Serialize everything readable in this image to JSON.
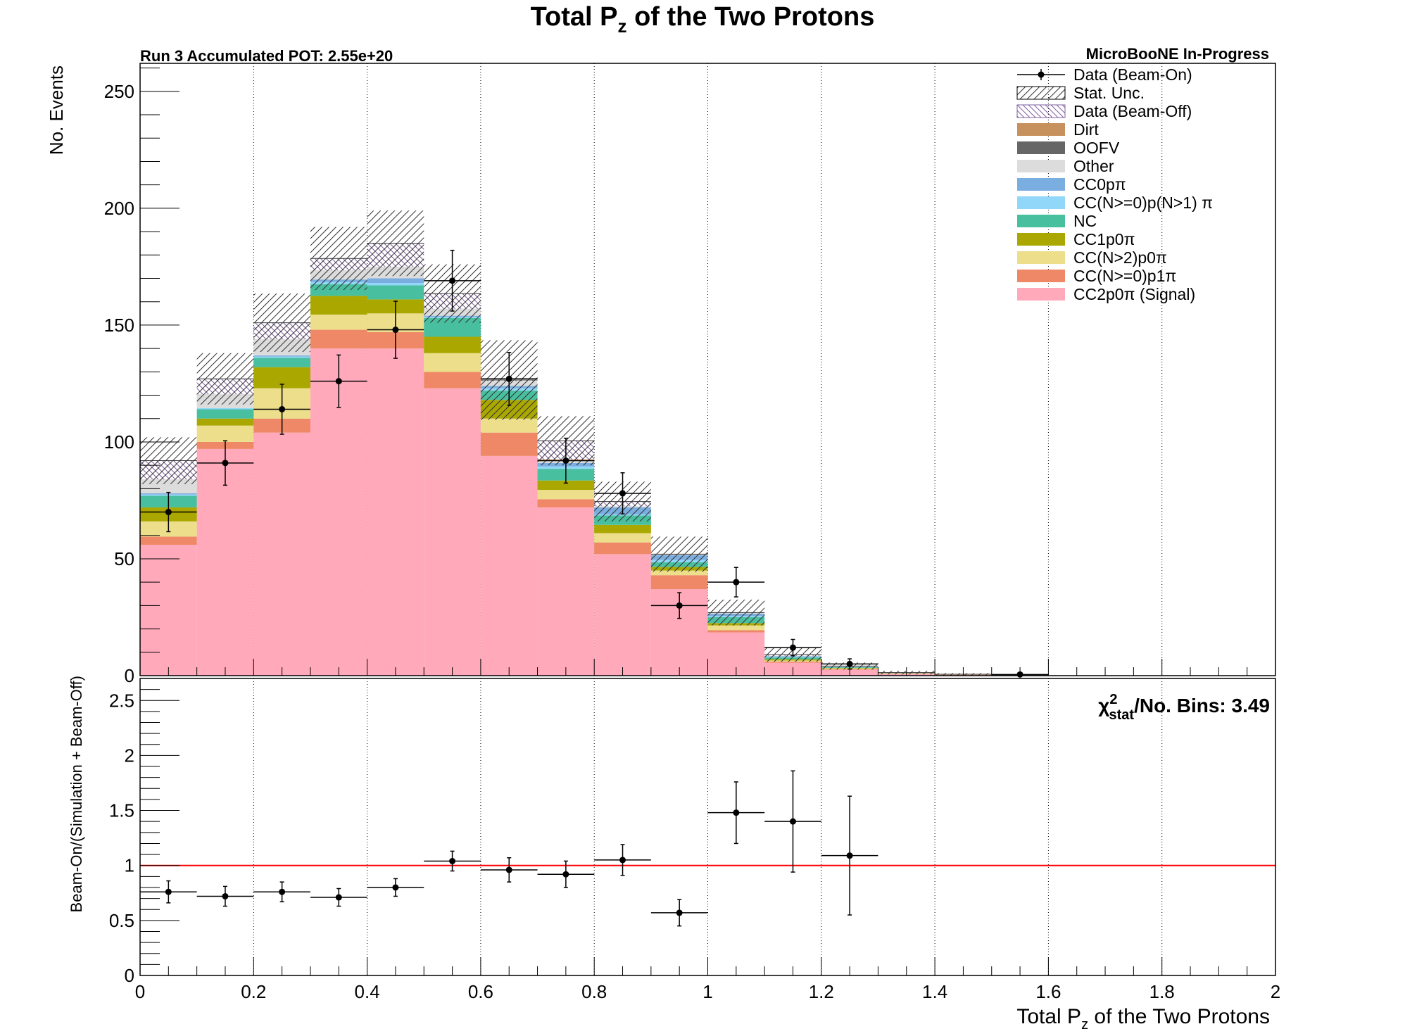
{
  "chart_data": [
    {
      "type": "bar",
      "stacked": true,
      "title": "Total P",
      "title_sub": "z",
      "title_rest": " of the Two Protons",
      "run_label": "Run 3 Accumulated POT: 2.55e+20",
      "experiment_label": "MicroBooNE In-Progress",
      "ylabel": "No. Events",
      "xlim": [
        0,
        2
      ],
      "ylim": [
        0,
        262
      ],
      "y_ticks": [
        0,
        50,
        100,
        150,
        200,
        250
      ],
      "y_tick_labels": [
        "0",
        "50",
        "100",
        "150",
        "200",
        "250"
      ],
      "grid_x": true,
      "bin_edges": [
        0,
        0.1,
        0.2,
        0.3,
        0.4,
        0.5,
        0.6,
        0.7,
        0.8,
        0.9,
        1.0,
        1.1,
        1.2,
        1.3,
        1.4,
        1.5,
        1.6
      ],
      "series": [
        {
          "name": "CC2p0π (Signal)",
          "color": "#ffa9bb",
          "values": [
            56,
            97,
            104,
            140,
            140,
            123,
            94,
            72,
            52,
            37,
            18.5,
            5.5,
            2.5,
            0.8,
            0.3,
            0.2
          ]
        },
        {
          "name": "CC(N>=0)p1π",
          "color": "#ef8866",
          "values": [
            3.5,
            3,
            6,
            8,
            7,
            7,
            10,
            3.5,
            5,
            6,
            1,
            0.5,
            0.3,
            0.1,
            0.1,
            0
          ]
        },
        {
          "name": "CC(N>2)p0π",
          "color": "#ecde8a",
          "values": [
            6.5,
            7,
            13,
            6.5,
            8,
            8,
            6,
            4,
            4,
            2,
            2,
            0.5,
            0.3,
            0.1,
            0.1,
            0
          ]
        },
        {
          "name": "CC1p0π",
          "color": "#aaa700",
          "values": [
            6,
            3,
            9,
            8,
            6,
            7,
            8,
            4,
            3.5,
            1.5,
            1,
            0.5,
            0.2,
            0.1,
            0,
            0
          ]
        },
        {
          "name": "NC",
          "color": "#48bf9e",
          "values": [
            5,
            4,
            4,
            5,
            6,
            8,
            4,
            5,
            4,
            2,
            2.5,
            0.8,
            0.3,
            0.1,
            0.1,
            0
          ]
        },
        {
          "name": "CC(N>=0)p(N>1) π",
          "color": "#90d7f9",
          "values": [
            0.5,
            0.5,
            0.5,
            1,
            1,
            0.5,
            1,
            1,
            0.5,
            1,
            0.5,
            0.2,
            0.1,
            0,
            0,
            0
          ]
        },
        {
          "name": "CC0pπ",
          "color": "#7aaee0",
          "values": [
            0.5,
            0,
            0.5,
            1,
            2,
            0.5,
            1,
            1.5,
            3,
            2,
            1,
            0.3,
            0.1,
            0.1,
            0,
            0
          ]
        },
        {
          "name": "Other",
          "color": "#dcdcdc",
          "values": [
            6,
            6,
            7,
            4,
            5,
            3,
            2,
            1,
            0.5,
            0.5,
            0.5,
            0.2,
            0.1,
            0,
            0,
            0
          ]
        },
        {
          "name": "OOFV",
          "color": "#666666",
          "values": [
            0,
            0,
            0,
            0,
            0,
            0,
            0,
            0,
            0,
            0,
            0,
            0,
            0,
            0,
            0,
            0
          ]
        },
        {
          "name": "Dirt",
          "color": "#c7915e",
          "values": [
            0,
            0,
            0,
            0,
            0,
            0,
            0,
            0.5,
            0,
            0,
            0,
            0,
            0,
            0,
            0,
            0
          ]
        },
        {
          "name": "Data (Beam-Off)",
          "color": "#8060a0",
          "values": [
            8,
            6.5,
            7,
            5,
            10,
            6.5,
            0.5,
            8,
            2,
            0,
            0,
            0.5,
            0.2,
            0,
            0,
            0
          ]
        }
      ],
      "stat_unc": [
        10,
        11,
        12.5,
        13.5,
        14,
        12.5,
        17,
        10.5,
        8.5,
        7.5,
        5.5,
        3,
        1.5,
        0.8,
        0.5,
        0.3
      ],
      "data_points": {
        "name": "Data (Beam-On)",
        "x": [
          0.05,
          0.15,
          0.25,
          0.35,
          0.45,
          0.55,
          0.65,
          0.75,
          0.85,
          0.95,
          1.05,
          1.15,
          1.25,
          1.35,
          1.45,
          1.55
        ],
        "y": [
          70,
          91,
          114,
          126,
          148,
          169,
          127,
          92,
          78,
          30,
          40,
          12,
          5,
          0,
          0,
          0.5
        ],
        "yerr": [
          8.4,
          9.5,
          10.7,
          11.2,
          12.2,
          13,
          11.3,
          9.6,
          8.8,
          5.5,
          6.3,
          3.5,
          2.2,
          0,
          0,
          0.7
        ]
      },
      "legend": {
        "placement": "top-right",
        "entries": [
          "Data (Beam-On)",
          "Stat. Unc.",
          "Data (Beam-Off)",
          "Dirt",
          "OOFV",
          "Other",
          "CC0pπ",
          "CC(N>=0)p(N>1) π",
          "NC",
          "CC1p0π",
          "CC(N>2)p0π",
          "CC(N>=0)p1π",
          "CC2p0π (Signal)"
        ]
      }
    },
    {
      "type": "scatter",
      "ylabel": "Beam-On/(Simulation + Beam-Off)",
      "xlabel": "Total P",
      "xlabel_sub": "z",
      "xlabel_rest": " of the Two Protons",
      "xlim": [
        0,
        2
      ],
      "ylim": [
        0,
        2.7
      ],
      "x_ticks": [
        0,
        0.2,
        0.4,
        0.6,
        0.8,
        1,
        1.2,
        1.4,
        1.6,
        1.8,
        2
      ],
      "x_tick_labels": [
        "0",
        "0.2",
        "0.4",
        "0.6",
        "0.8",
        "1",
        "1.2",
        "1.4",
        "1.6",
        "1.8",
        "2"
      ],
      "y_ticks": [
        0,
        0.5,
        1,
        1.5,
        2,
        2.5
      ],
      "y_tick_labels": [
        "0",
        "0.5",
        "1",
        "1.5",
        "2",
        "2.5"
      ],
      "grid_x": true,
      "reference_line": {
        "y": 1,
        "color": "#ff0000"
      },
      "chi2_label": {
        "symbol": "χ",
        "sup": "2",
        "sub": "stat",
        "text": "/No. Bins: 3.49"
      },
      "ratio": {
        "x": [
          0.05,
          0.15,
          0.25,
          0.35,
          0.45,
          0.55,
          0.65,
          0.75,
          0.85,
          0.95,
          1.05,
          1.15,
          1.25
        ],
        "y": [
          0.76,
          0.72,
          0.76,
          0.71,
          0.8,
          1.04,
          0.96,
          0.92,
          1.05,
          0.57,
          1.48,
          1.4,
          1.09
        ],
        "yerr": [
          0.1,
          0.09,
          0.09,
          0.08,
          0.08,
          0.09,
          0.11,
          0.12,
          0.14,
          0.12,
          0.28,
          0.46,
          0.54
        ]
      }
    }
  ]
}
